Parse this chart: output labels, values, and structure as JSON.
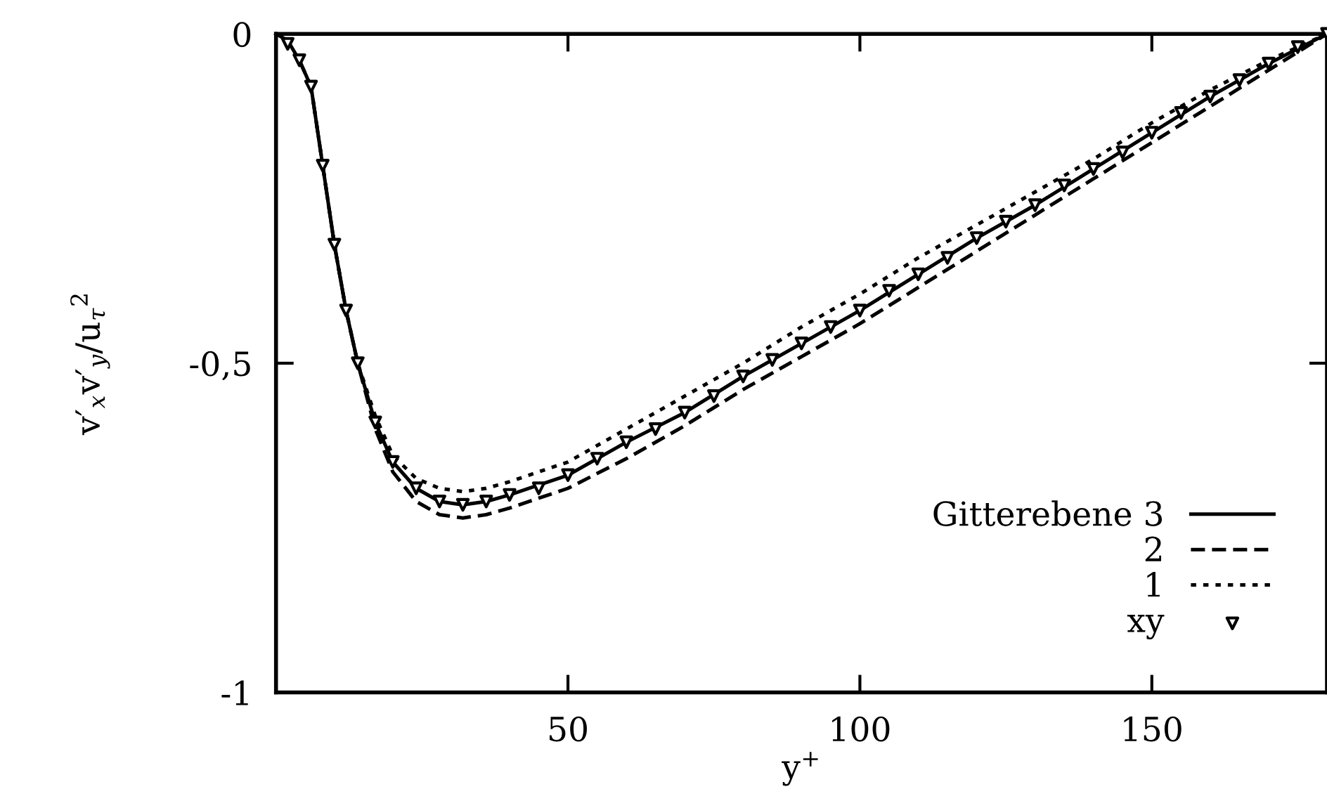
{
  "chart_data": {
    "type": "line",
    "xlabel": "y$^{+}$",
    "ylabel": "v′$_{x}$v′$_{y}$/u$_{τ}$$^{2}$",
    "xlim": [
      0,
      180
    ],
    "ylim": [
      -1,
      0
    ],
    "xticks": [
      50,
      100,
      150
    ],
    "yticks": [
      0,
      {
        "value": -0.5,
        "label": "-0,5"
      },
      -1
    ],
    "grid": false,
    "legend": "bottom right",
    "series": [
      {
        "name": "Gitterebene 3",
        "color": "#000000",
        "line_style": "solid",
        "marker": "none",
        "x": [
          0,
          2,
          4,
          6,
          8,
          10,
          12,
          14,
          17,
          20,
          24,
          28,
          32,
          36,
          40,
          50,
          60,
          70,
          80,
          90,
          100,
          110,
          120,
          130,
          140,
          150,
          160,
          170,
          180
        ],
        "values": [
          0,
          -0.01,
          -0.04,
          -0.08,
          -0.2,
          -0.32,
          -0.42,
          -0.5,
          -0.59,
          -0.65,
          -0.69,
          -0.71,
          -0.715,
          -0.71,
          -0.7,
          -0.67,
          -0.62,
          -0.575,
          -0.52,
          -0.47,
          -0.42,
          -0.365,
          -0.31,
          -0.26,
          -0.205,
          -0.15,
          -0.095,
          -0.045,
          0
        ]
      },
      {
        "name": "2",
        "color": "#000000",
        "line_style": "dashed",
        "marker": "none",
        "x": [
          4,
          6,
          8,
          10,
          12,
          14,
          17,
          20,
          24,
          28,
          32,
          36,
          40,
          50,
          60,
          70,
          80,
          90,
          100,
          110,
          120,
          130,
          140,
          150,
          160,
          170,
          180
        ],
        "values": [
          -0.04,
          -0.08,
          -0.2,
          -0.32,
          -0.42,
          -0.5,
          -0.6,
          -0.665,
          -0.71,
          -0.73,
          -0.735,
          -0.73,
          -0.72,
          -0.69,
          -0.645,
          -0.595,
          -0.54,
          -0.49,
          -0.44,
          -0.385,
          -0.33,
          -0.275,
          -0.22,
          -0.165,
          -0.11,
          -0.055,
          0
        ]
      },
      {
        "name": "1",
        "color": "#000000",
        "line_style": "dotted",
        "marker": "none",
        "x": [
          6,
          8,
          10,
          12,
          14,
          17,
          20,
          24,
          28,
          32,
          36,
          40,
          50,
          60,
          70,
          80,
          90,
          100,
          110,
          120,
          130,
          140,
          150,
          160,
          170,
          180
        ],
        "values": [
          -0.08,
          -0.2,
          -0.32,
          -0.42,
          -0.5,
          -0.58,
          -0.64,
          -0.675,
          -0.69,
          -0.695,
          -0.69,
          -0.68,
          -0.65,
          -0.6,
          -0.55,
          -0.5,
          -0.445,
          -0.395,
          -0.34,
          -0.29,
          -0.24,
          -0.19,
          -0.135,
          -0.085,
          -0.04,
          0
        ]
      },
      {
        "name": "xy",
        "type": "scatter",
        "color": "#000000",
        "marker": "triangle",
        "x": [
          2,
          4,
          6,
          8,
          10,
          12,
          14,
          17,
          20,
          24,
          28,
          32,
          36,
          40,
          45,
          50,
          55,
          60,
          65,
          70,
          75,
          80,
          85,
          90,
          95,
          100,
          105,
          110,
          115,
          120,
          125,
          130,
          135,
          140,
          145,
          150,
          155,
          160,
          165,
          170,
          175,
          180
        ],
        "values": [
          -0.015,
          -0.04,
          -0.08,
          -0.2,
          -0.32,
          -0.42,
          -0.5,
          -0.59,
          -0.65,
          -0.69,
          -0.71,
          -0.715,
          -0.71,
          -0.7,
          -0.69,
          -0.67,
          -0.645,
          -0.62,
          -0.6,
          -0.575,
          -0.55,
          -0.52,
          -0.495,
          -0.47,
          -0.445,
          -0.42,
          -0.39,
          -0.365,
          -0.34,
          -0.31,
          -0.285,
          -0.26,
          -0.23,
          -0.205,
          -0.18,
          -0.15,
          -0.12,
          -0.095,
          -0.07,
          -0.045,
          -0.02,
          0
        ]
      }
    ]
  }
}
